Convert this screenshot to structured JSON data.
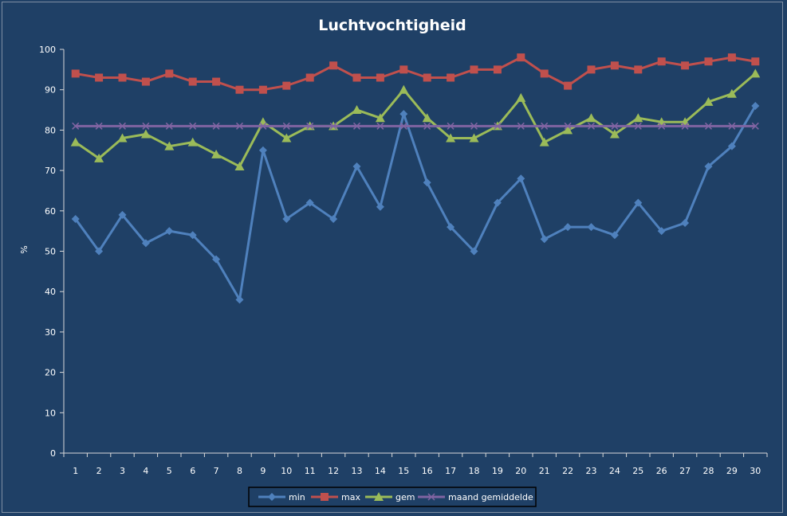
{
  "chart_data": {
    "type": "line",
    "title": "Luchtvochtigheid",
    "xlabel": "",
    "ylabel": "%",
    "ylim": [
      0,
      100
    ],
    "yticks": [
      0,
      10,
      20,
      30,
      40,
      50,
      60,
      70,
      80,
      90,
      100
    ],
    "grid": false,
    "legend_position": "bottom",
    "x": [
      1,
      2,
      3,
      4,
      5,
      6,
      7,
      8,
      9,
      10,
      11,
      12,
      13,
      14,
      15,
      16,
      17,
      18,
      19,
      20,
      21,
      22,
      23,
      24,
      25,
      26,
      27,
      28,
      29,
      30
    ],
    "series": [
      {
        "name": "min",
        "color": "#4f81bd",
        "marker": "diamond",
        "values": [
          58,
          50,
          59,
          52,
          55,
          54,
          48,
          38,
          75,
          58,
          62,
          58,
          71,
          61,
          84,
          67,
          56,
          50,
          62,
          68,
          53,
          56,
          56,
          54,
          62,
          55,
          57,
          71,
          76,
          86
        ]
      },
      {
        "name": "max",
        "color": "#c0504d",
        "marker": "square",
        "values": [
          94,
          93,
          93,
          92,
          94,
          92,
          92,
          90,
          90,
          91,
          93,
          96,
          93,
          93,
          95,
          93,
          93,
          95,
          95,
          98,
          94,
          91,
          95,
          96,
          95,
          97,
          96,
          97,
          98,
          97
        ]
      },
      {
        "name": "gem",
        "color": "#9bbb59",
        "marker": "triangle",
        "values": [
          77,
          73,
          78,
          79,
          76,
          77,
          74,
          71,
          82,
          78,
          81,
          81,
          85,
          83,
          90,
          83,
          78,
          78,
          81,
          88,
          77,
          80,
          83,
          79,
          83,
          82,
          82,
          87,
          89,
          94
        ]
      },
      {
        "name": "maand gemiddelde",
        "color": "#8064a2",
        "marker": "x",
        "values": [
          81,
          81,
          81,
          81,
          81,
          81,
          81,
          81,
          81,
          81,
          81,
          81,
          81,
          81,
          81,
          81,
          81,
          81,
          81,
          81,
          81,
          81,
          81,
          81,
          81,
          81,
          81,
          81,
          81,
          81
        ]
      }
    ]
  }
}
